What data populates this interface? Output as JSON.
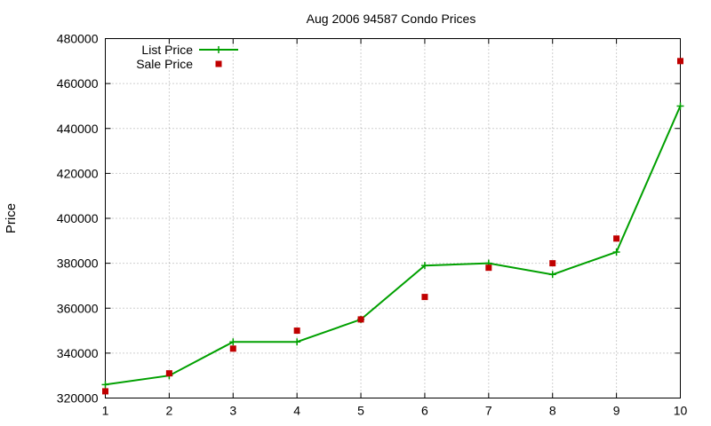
{
  "chart_data": {
    "type": "line",
    "title": "Aug 2006 94587 Condo Prices",
    "xlabel": "",
    "ylabel": "Price",
    "x": [
      1,
      2,
      3,
      4,
      5,
      6,
      7,
      8,
      9,
      10
    ],
    "xlim": [
      1,
      10
    ],
    "ylim": [
      320000,
      480000
    ],
    "x_ticks": [
      "1",
      "2",
      "3",
      "4",
      "5",
      "6",
      "7",
      "8",
      "9",
      "10"
    ],
    "y_ticks": [
      "320000",
      "340000",
      "360000",
      "380000",
      "400000",
      "420000",
      "440000",
      "460000",
      "480000"
    ],
    "grid": true,
    "legend_position": "top-left",
    "series": [
      {
        "name": "List Price",
        "style": "linespoints",
        "marker": "plus",
        "color": "#00a000",
        "values": [
          326000,
          330000,
          345000,
          345000,
          355000,
          379000,
          380000,
          375000,
          385000,
          450000
        ]
      },
      {
        "name": "Sale Price",
        "style": "points",
        "marker": "square",
        "color": "#c00000",
        "values": [
          323000,
          331000,
          342000,
          350000,
          355000,
          365000,
          378000,
          380000,
          391000,
          470000
        ]
      }
    ]
  }
}
